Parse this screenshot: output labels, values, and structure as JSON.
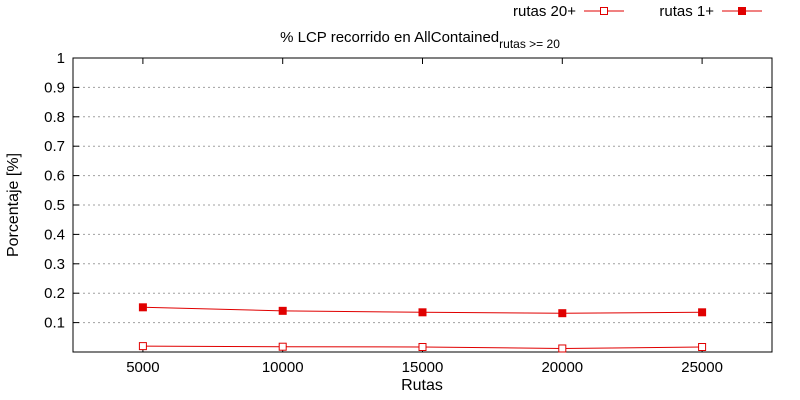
{
  "chart_data": {
    "type": "line",
    "title": "% LCP recorrido en AllContained",
    "title_subscript": "rutas >= 20",
    "xlabel": "Rutas",
    "ylabel": "Porcentaje [%]",
    "x": [
      5000,
      10000,
      15000,
      20000,
      25000
    ],
    "xlim": [
      2500,
      27500
    ],
    "ylim": [
      0.0,
      1.0
    ],
    "yticks": [
      0.1,
      0.2,
      0.3,
      0.4,
      0.5,
      0.6,
      0.7,
      0.8,
      0.9,
      1
    ],
    "ytick_labels": [
      "0.1",
      "0.2",
      "0.3",
      "0.4",
      "0.5",
      "0.6",
      "0.7",
      "0.8",
      "0.9",
      "1"
    ],
    "xtick_labels": [
      "5000",
      "10000",
      "15000",
      "20000",
      "25000"
    ],
    "grid": "horizontal dotted",
    "legend_position": "top-right",
    "series": [
      {
        "name": "rutas 20+",
        "values": [
          0.02,
          0.018,
          0.017,
          0.012,
          0.017
        ],
        "marker": "open-square",
        "color": "#e00000"
      },
      {
        "name": "rutas 1+",
        "values": [
          0.152,
          0.14,
          0.135,
          0.132,
          0.135
        ],
        "marker": "filled-square",
        "color": "#e00000"
      }
    ]
  }
}
